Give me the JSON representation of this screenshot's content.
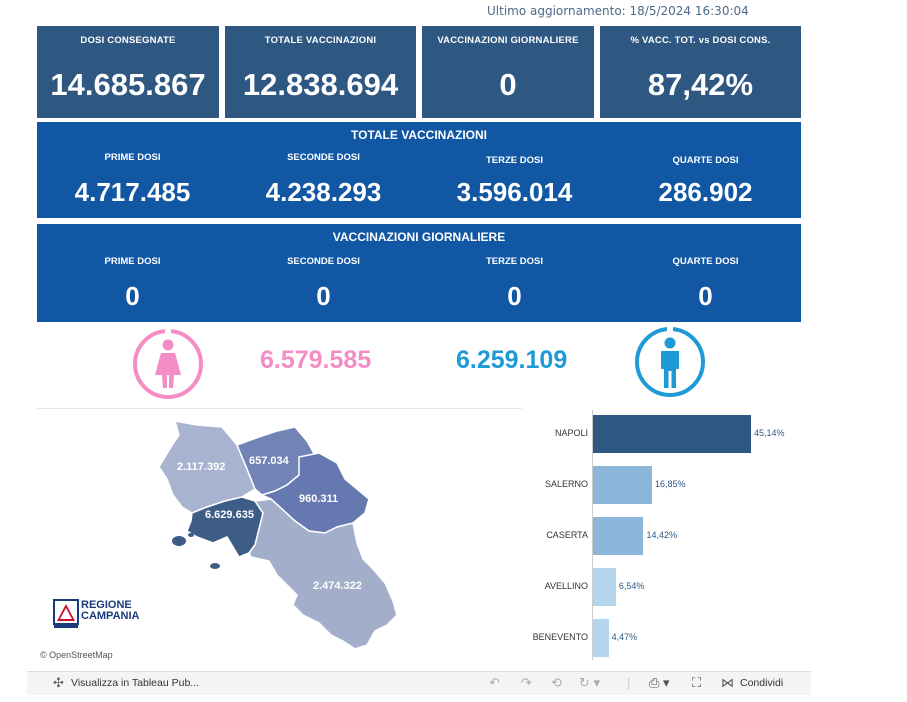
{
  "header": {
    "last_update": "Ultimo aggiornamento: 18/5/2024 16:30:04"
  },
  "kpis": [
    {
      "label": "DOSI  CONSEGNATE",
      "value": "14.685.867"
    },
    {
      "label": "TOTALE VACCINAZIONI",
      "value": "12.838.694"
    },
    {
      "label": "VACCINAZIONI GIORNALIERE",
      "value": "0"
    },
    {
      "label": "% VACC. TOT. vs DOSI CONS.",
      "value": "87,42%"
    }
  ],
  "totale": {
    "title": "TOTALE VACCINAZIONI",
    "cells": [
      {
        "label": "PRIME DOSI",
        "value": "4.717.485"
      },
      {
        "label": "SECONDE DOSI",
        "value": "4.238.293"
      },
      {
        "label": "TERZE DOSI",
        "value": "3.596.014"
      },
      {
        "label": "QUARTE DOSI",
        "value": "286.902"
      }
    ]
  },
  "giornaliere": {
    "title": "VACCINAZIONI GIORNALIERE",
    "cells": [
      {
        "label": "PRIME DOSI",
        "value": "0"
      },
      {
        "label": "SECONDE DOSI",
        "value": "0"
      },
      {
        "label": "TERZE DOSI",
        "value": "0"
      },
      {
        "label": "QUARTE DOSI",
        "value": "0"
      }
    ]
  },
  "gender": {
    "female_value": "6.579.585",
    "male_value": "6.259.109",
    "female_color": "#f48cc5",
    "male_color": "#1e9ad6",
    "female_icon": "female-person-icon",
    "male_icon": "male-person-icon"
  },
  "map": {
    "provinces": [
      {
        "id": "caserta",
        "value": "2.117.392",
        "color": "#a7b3cf"
      },
      {
        "id": "benevento",
        "value": "657.034",
        "color": "#7283b5"
      },
      {
        "id": "avellino",
        "value": "960.311",
        "color": "#6678b0"
      },
      {
        "id": "napoli",
        "value": "6.629.635",
        "color": "#3d5c86"
      },
      {
        "id": "salerno",
        "value": "2.474.322",
        "color": "#a3aecb"
      }
    ],
    "attribution": "© OpenStreetMap",
    "logo_line1": "REGIONE",
    "logo_line2": "CAMPANIA"
  },
  "chart_data": {
    "type": "bar",
    "orientation": "horizontal",
    "categories": [
      "NAPOLI",
      "SALERNO",
      "CASERTA",
      "AVELLINO",
      "BENEVENTO"
    ],
    "values": [
      45.14,
      16.85,
      14.42,
      6.54,
      4.47
    ],
    "labels": [
      "45,14%",
      "16,85%",
      "14,42%",
      "6,54%",
      "4,47%"
    ],
    "colors": [
      "#2e5782",
      "#8bb6da",
      "#8bb6da",
      "#b5d5ed",
      "#b5d5ed"
    ],
    "xlim": [
      0,
      50
    ]
  },
  "toolbar": {
    "view_label": "Visualizza in Tableau Pub...",
    "share_label": "Condividi"
  }
}
